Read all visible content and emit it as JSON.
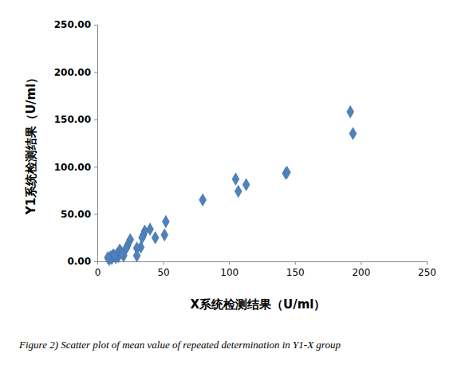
{
  "chart_data": {
    "type": "scatter",
    "title": "Figure 2) Scatter plot of mean value of repeated determination in Y1-X group",
    "x_label": "X系统检测结果（U/ml）",
    "y_label": "Y1系统检测结果（U/ml）",
    "x": [
      192,
      194,
      143,
      144,
      105,
      107,
      113,
      80,
      52,
      51,
      44,
      40,
      36,
      35,
      34,
      33,
      30,
      30,
      25,
      23,
      22,
      20,
      18,
      17,
      16,
      15,
      14,
      12,
      11,
      10,
      9,
      8,
      13,
      19
    ],
    "values": [
      158,
      135,
      93,
      94,
      87,
      74,
      81,
      65,
      42,
      28,
      25,
      34,
      32,
      28,
      25,
      15,
      14,
      6,
      23,
      17,
      14,
      6,
      10,
      12,
      5,
      8,
      4,
      7,
      3,
      5,
      2,
      4,
      6,
      8
    ],
    "color": "#4f81bd",
    "marker": "diamond",
    "xlim": [
      0,
      250
    ],
    "xticks": [
      0,
      50,
      100,
      150,
      200,
      250
    ],
    "ylim": [
      0,
      250
    ],
    "yticks": [
      {
        "value": 0,
        "label": "0.00"
      },
      {
        "value": 50,
        "label": "50.00"
      },
      {
        "value": 100,
        "label": "100.00"
      },
      {
        "value": 150,
        "label": "150.00"
      },
      {
        "value": 200,
        "label": "200.00"
      },
      {
        "value": 250,
        "label": "250.00"
      }
    ],
    "grid": false
  }
}
